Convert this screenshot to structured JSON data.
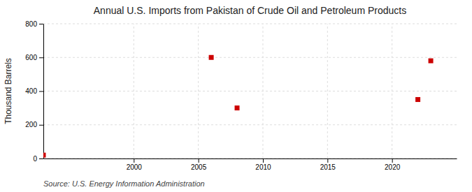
{
  "chart_data": {
    "type": "scatter",
    "title": "Annual U.S. Imports from Pakistan of Crude Oil and Petroleum Products",
    "ylabel": "Thousand Barrels",
    "annotation": "Source: U.S. Energy Information Administration",
    "x": [
      1993,
      2006,
      2008,
      2022,
      2023
    ],
    "values": [
      20,
      600,
      300,
      350,
      580
    ],
    "color": "#cc0000",
    "marker": "square",
    "xlim": [
      1993,
      2025
    ],
    "ylim": [
      0,
      800
    ],
    "xticks": [
      2000,
      2005,
      2010,
      2015,
      2020
    ],
    "yticks": [
      0,
      200,
      400,
      600,
      800
    ],
    "grid": true
  }
}
